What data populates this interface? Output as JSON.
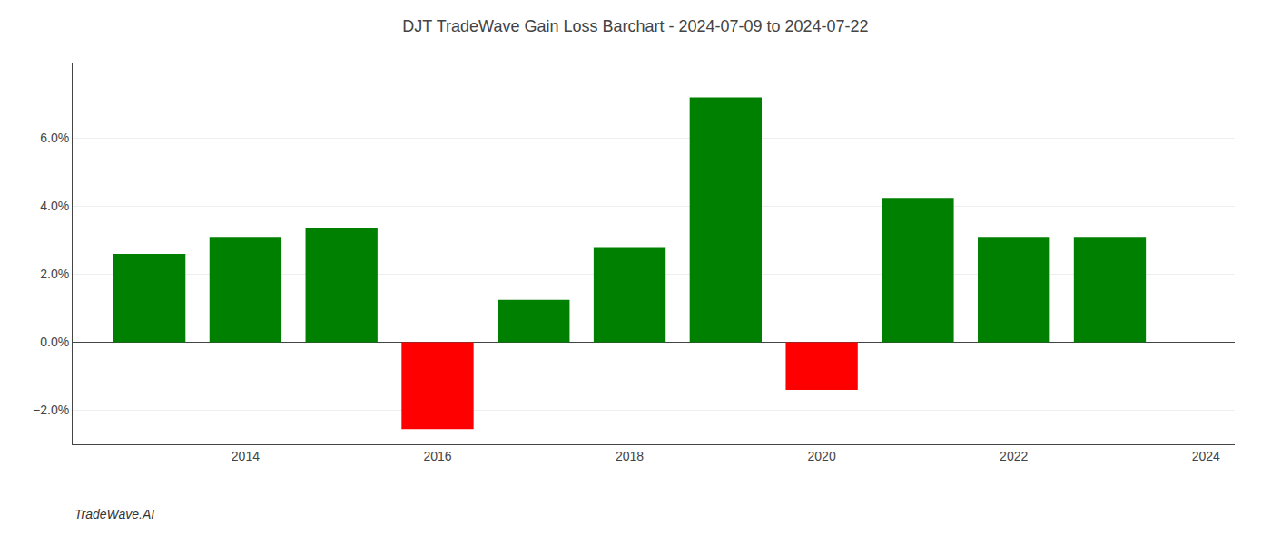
{
  "chart_data": {
    "type": "bar",
    "title": "DJT TradeWave Gain Loss Barchart - 2024-07-09 to 2024-07-22",
    "annotations": [
      "TradeWave.AI"
    ],
    "x": [
      2013,
      2014,
      2015,
      2016,
      2017,
      2018,
      2019,
      2020,
      2021,
      2022,
      2023
    ],
    "values": [
      2.6,
      3.1,
      3.35,
      -2.55,
      1.25,
      2.8,
      7.2,
      -1.4,
      4.25,
      3.1,
      3.1
    ],
    "colors": [
      "#008000",
      "#008000",
      "#008000",
      "#ff0000",
      "#008000",
      "#008000",
      "#008000",
      "#ff0000",
      "#008000",
      "#008000",
      "#008000"
    ],
    "xlim": [
      2012.2,
      2024.3
    ],
    "xticks": [
      2014,
      2016,
      2018,
      2020,
      2022,
      2024
    ],
    "ylim": [
      -3.0,
      8.2
    ],
    "yticks": [
      {
        "value": -2.0,
        "label": "−2.0%"
      },
      {
        "value": 0.0,
        "label": "0.0%"
      },
      {
        "value": 2.0,
        "label": "2.0%"
      },
      {
        "value": 4.0,
        "label": "4.0%"
      },
      {
        "value": 6.0,
        "label": "6.0%"
      }
    ],
    "grid": true
  }
}
